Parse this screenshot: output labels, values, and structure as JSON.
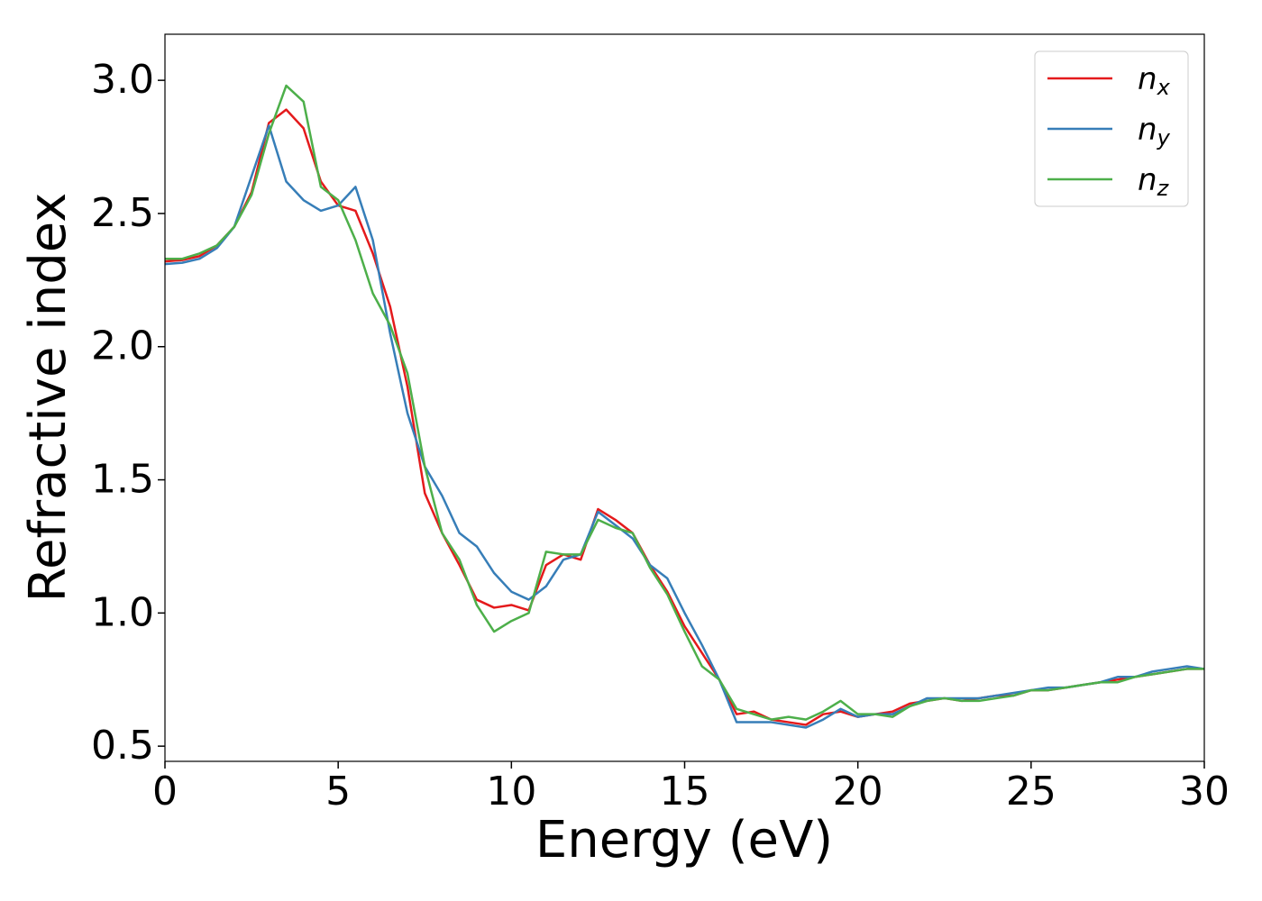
{
  "chart_data": {
    "type": "line",
    "xlabel": "Energy (eV)",
    "ylabel": "Refractive index",
    "xlim": [
      0,
      30
    ],
    "xticks": [
      0,
      5,
      10,
      15,
      20,
      25,
      30
    ],
    "ylim": [
      0.443,
      3.173
    ],
    "yticks": [
      0.5,
      {
        "value": 1,
        "label": "1.0"
      },
      1.5,
      {
        "value": 2,
        "label": "2.0"
      },
      2.5,
      {
        "value": 3,
        "label": "3.0"
      }
    ],
    "grid": false,
    "legend": "upper right",
    "x": [
      0,
      0.5,
      1,
      1.5,
      2,
      2.5,
      3,
      3.5,
      4,
      4.5,
      5,
      5.5,
      6,
      6.5,
      7,
      7.5,
      8,
      8.5,
      9,
      9.5,
      10,
      10.5,
      11,
      11.5,
      12,
      12.5,
      13,
      13.5,
      14,
      14.5,
      15,
      15.5,
      16,
      16.5,
      17,
      17.5,
      18,
      18.5,
      19,
      19.5,
      20,
      20.5,
      21,
      21.5,
      22,
      22.5,
      23,
      23.5,
      24,
      24.5,
      25,
      25.5,
      26,
      26.5,
      27,
      27.5,
      28,
      28.5,
      29,
      29.5,
      30
    ],
    "series": [
      {
        "name": "nx",
        "color": "#e41a1c",
        "values": [
          2.32,
          2.325,
          2.34,
          2.38,
          2.45,
          2.58,
          2.84,
          2.89,
          2.82,
          2.62,
          2.53,
          2.51,
          2.35,
          2.15,
          1.85,
          1.45,
          1.3,
          1.18,
          1.05,
          1.02,
          1.03,
          1.01,
          1.18,
          1.22,
          1.2,
          1.39,
          1.35,
          1.3,
          1.18,
          1.08,
          0.95,
          0.85,
          0.75,
          0.62,
          0.63,
          0.6,
          0.59,
          0.58,
          0.62,
          0.63,
          0.61,
          0.62,
          0.63,
          0.66,
          0.67,
          0.68,
          0.67,
          0.68,
          0.69,
          0.69,
          0.71,
          0.71,
          0.72,
          0.73,
          0.74,
          0.75,
          0.76,
          0.77,
          0.78,
          0.79,
          0.79
        ]
      },
      {
        "name": "ny",
        "color": "#377eb8",
        "values": [
          2.31,
          2.315,
          2.33,
          2.37,
          2.45,
          2.64,
          2.83,
          2.62,
          2.55,
          2.51,
          2.53,
          2.6,
          2.4,
          2.05,
          1.75,
          1.55,
          1.44,
          1.3,
          1.25,
          1.15,
          1.08,
          1.05,
          1.1,
          1.2,
          1.22,
          1.38,
          1.33,
          1.28,
          1.18,
          1.13,
          1.0,
          0.88,
          0.75,
          0.59,
          0.59,
          0.59,
          0.58,
          0.57,
          0.6,
          0.64,
          0.61,
          0.62,
          0.62,
          0.65,
          0.68,
          0.68,
          0.68,
          0.68,
          0.69,
          0.7,
          0.71,
          0.72,
          0.72,
          0.73,
          0.74,
          0.76,
          0.76,
          0.78,
          0.79,
          0.8,
          0.79
        ]
      },
      {
        "name": "nz",
        "color": "#4daf4a",
        "values": [
          2.33,
          2.33,
          2.35,
          2.38,
          2.45,
          2.57,
          2.8,
          2.98,
          2.92,
          2.6,
          2.55,
          2.4,
          2.2,
          2.08,
          1.9,
          1.55,
          1.3,
          1.2,
          1.03,
          0.93,
          0.97,
          1.0,
          1.23,
          1.22,
          1.22,
          1.35,
          1.32,
          1.3,
          1.17,
          1.07,
          0.93,
          0.8,
          0.75,
          0.64,
          0.62,
          0.6,
          0.61,
          0.6,
          0.63,
          0.67,
          0.62,
          0.62,
          0.61,
          0.65,
          0.67,
          0.68,
          0.67,
          0.67,
          0.68,
          0.69,
          0.71,
          0.71,
          0.72,
          0.73,
          0.74,
          0.74,
          0.76,
          0.77,
          0.78,
          0.79,
          0.79
        ]
      }
    ]
  }
}
